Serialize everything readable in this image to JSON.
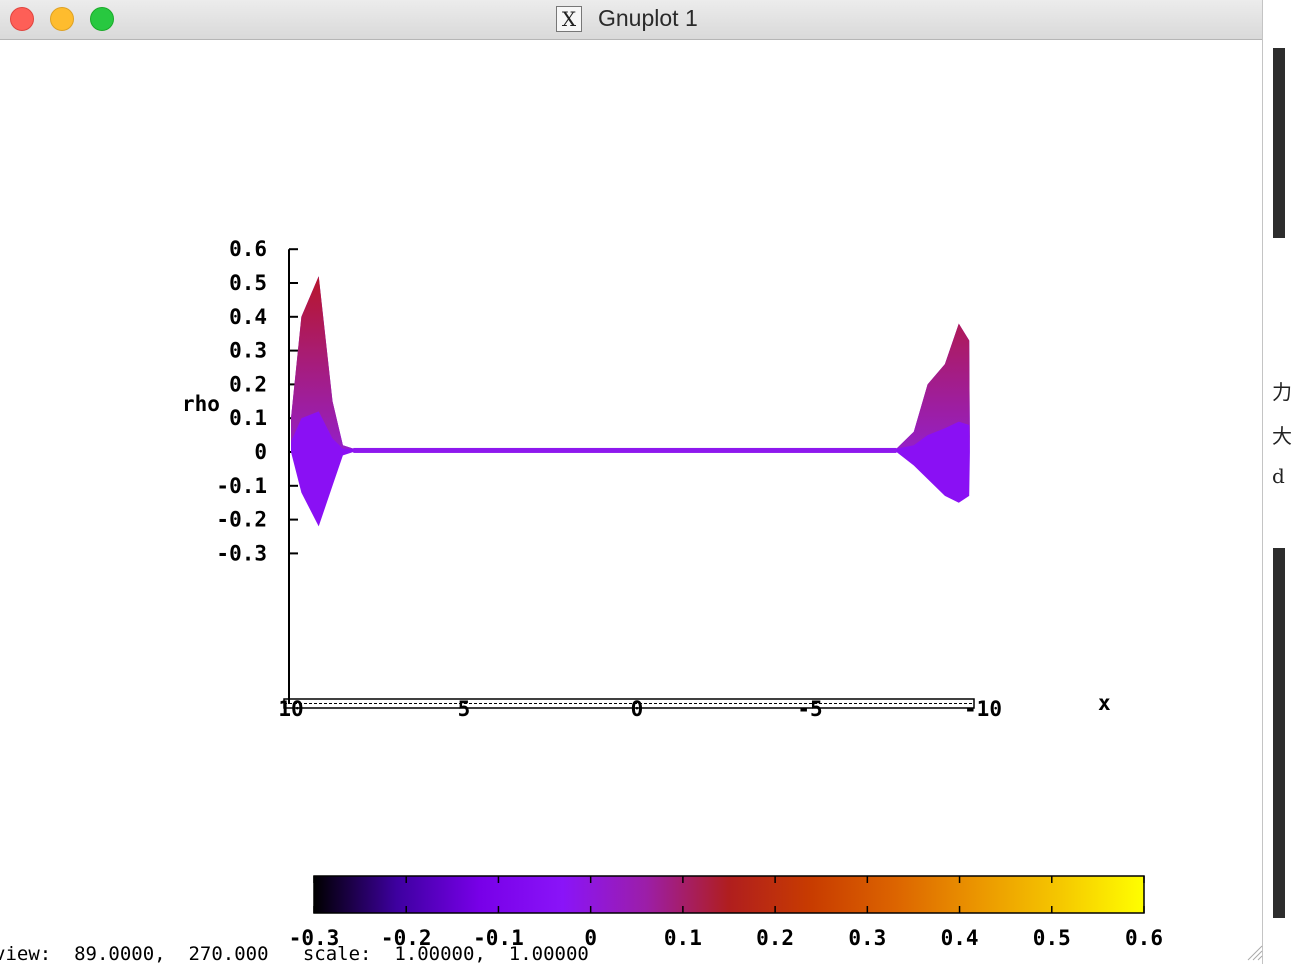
{
  "window": {
    "title": "Gnuplot 1",
    "app_icon": "x11-icon",
    "icon_glyph": "X",
    "strip_glyphs": [
      "力",
      "大",
      "d"
    ]
  },
  "status_bar": {
    "text": "view:  89.0000,  270.000   scale:  1.00000,  1.00000"
  },
  "chart_data": {
    "type": "surface",
    "zlabel": "rho",
    "xlabel": "x",
    "z_ticks": [
      "0.6",
      "0.5",
      "0.4",
      "0.3",
      "0.2",
      "0.1",
      "0",
      "-0.1",
      "-0.2",
      "-0.3"
    ],
    "z_tick_values": [
      0.6,
      0.5,
      0.4,
      0.3,
      0.2,
      0.1,
      0,
      -0.1,
      -0.2,
      -0.3
    ],
    "x_ticks": [
      "10",
      "5",
      "0",
      "-5",
      "-10"
    ],
    "x_tick_values": [
      10,
      5,
      0,
      -5,
      -10
    ],
    "cb_ticks": [
      "-0.3",
      "-0.2",
      "-0.1",
      "0",
      "0.1",
      "0.2",
      "0.3",
      "0.4",
      "0.5",
      "0.6"
    ],
    "cb_tick_values": [
      -0.3,
      -0.2,
      -0.1,
      0,
      0.1,
      0.2,
      0.3,
      0.4,
      0.5,
      0.6
    ],
    "cbrange": [
      -0.3,
      0.6
    ],
    "zrange": [
      -0.3,
      0.6
    ],
    "xrange": [
      10,
      -10
    ],
    "palette_colors": [
      "#000000",
      "#3e00a0",
      "#7800e8",
      "#8a14f8",
      "#9c1ea8",
      "#b01e1e",
      "#c83c00",
      "#dc6400",
      "#eb9600",
      "#f5c800",
      "#ffff00"
    ],
    "upper_envelope": [
      [
        10,
        0.1
      ],
      [
        9.7,
        0.4
      ],
      [
        9.2,
        0.52
      ],
      [
        8.8,
        0.15
      ],
      [
        8.5,
        0.02
      ],
      [
        8.2,
        0.01
      ],
      [
        -7.5,
        0.01
      ],
      [
        -8.0,
        0.06
      ],
      [
        -8.4,
        0.2
      ],
      [
        -8.9,
        0.26
      ],
      [
        -9.3,
        0.38
      ],
      [
        -9.6,
        0.33
      ],
      [
        -9.62,
        0.0
      ]
    ],
    "lower_envelope": [
      [
        10,
        0
      ],
      [
        9.7,
        -0.12
      ],
      [
        9.2,
        -0.22
      ],
      [
        8.8,
        -0.1
      ],
      [
        8.5,
        -0.01
      ],
      [
        8.2,
        0.0
      ],
      [
        -7.5,
        0.0
      ],
      [
        -8.0,
        -0.04
      ],
      [
        -8.4,
        -0.08
      ],
      [
        -8.9,
        -0.13
      ],
      [
        -9.3,
        -0.15
      ],
      [
        -9.6,
        -0.13
      ],
      [
        -9.62,
        0.0
      ]
    ],
    "inner_purple_envelope": [
      [
        10,
        0.03
      ],
      [
        9.7,
        0.1
      ],
      [
        9.2,
        0.12
      ],
      [
        8.8,
        0.04
      ],
      [
        8.5,
        0.01
      ],
      [
        8.2,
        0.01
      ],
      [
        -7.5,
        0.01
      ],
      [
        -8.0,
        0.02
      ],
      [
        -8.4,
        0.05
      ],
      [
        -8.9,
        0.07
      ],
      [
        -9.3,
        0.09
      ],
      [
        -9.6,
        0.08
      ],
      [
        -9.62,
        0.0
      ]
    ]
  }
}
